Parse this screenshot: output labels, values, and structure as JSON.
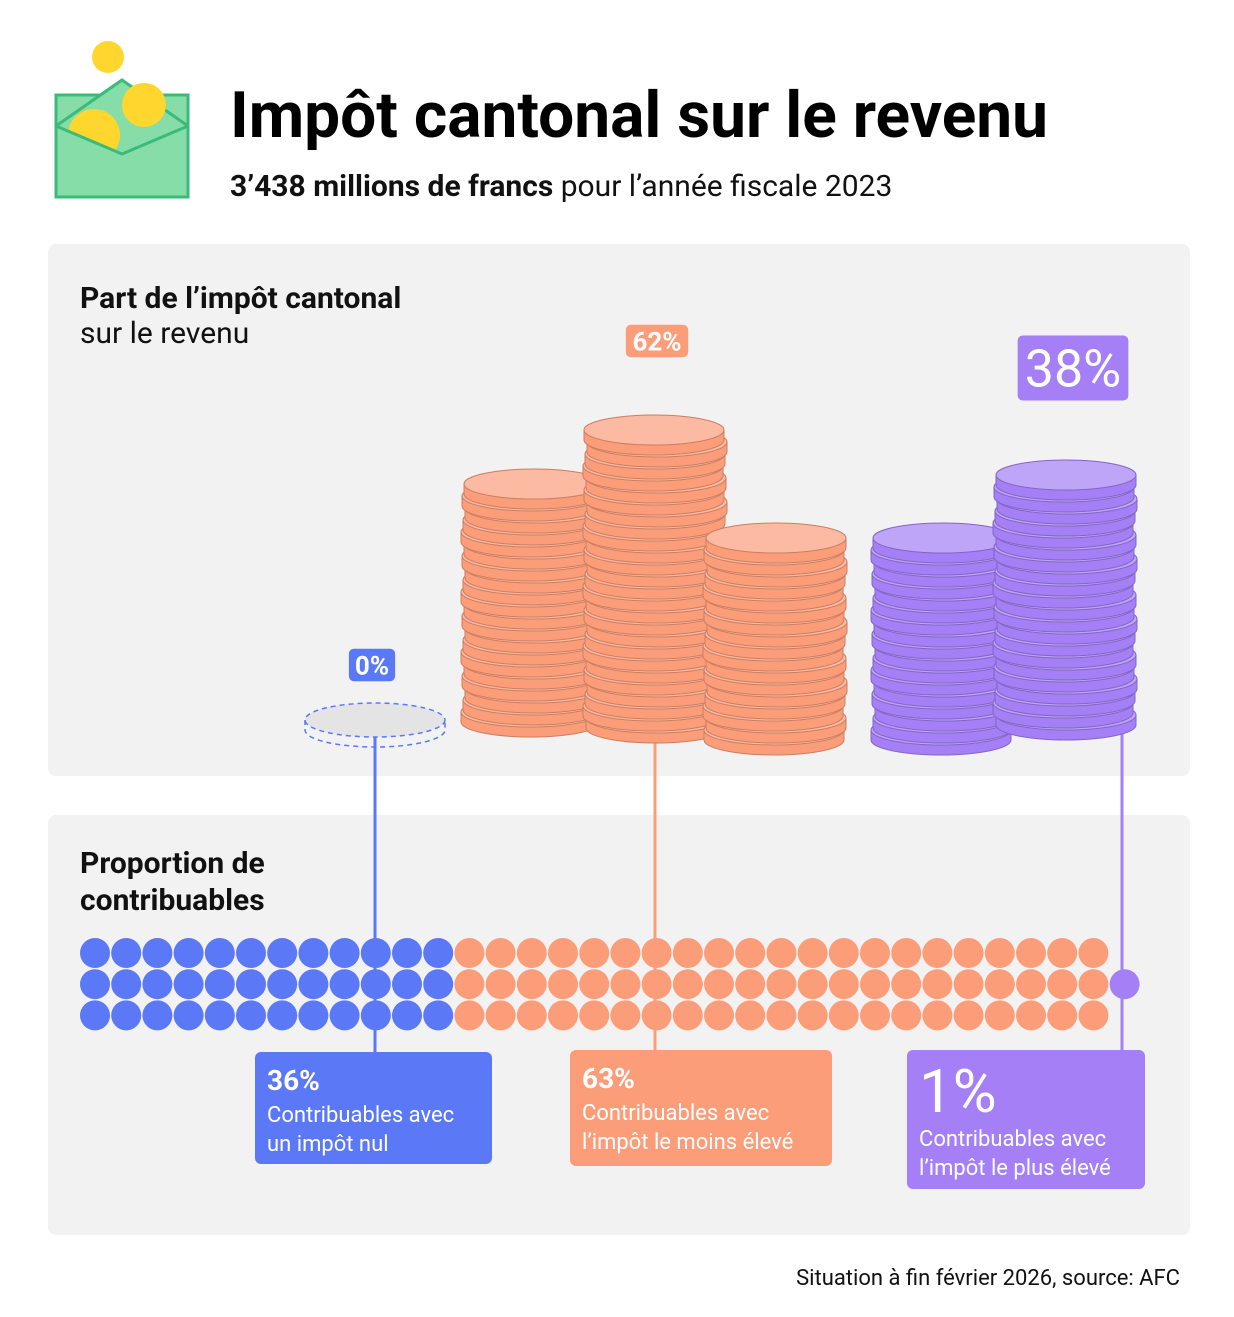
{
  "header": {
    "title": "Impôt cantonal sur le revenu",
    "subtitle_bold": "3’438 millions de francs",
    "subtitle_rest": "pour l’année fiscale 2023"
  },
  "chart_data": [
    {
      "type": "coins",
      "title": "Part de l’impôt cantonal",
      "subtitle": "sur le revenu",
      "values": [
        0,
        62,
        38
      ],
      "value_labels": [
        "0%",
        "62%",
        "38%"
      ],
      "colors": [
        "#5b78f7",
        "#fc9d7a",
        "#a47ff5"
      ]
    },
    {
      "type": "dots",
      "title": [
        "Proportion de",
        "contribuables"
      ],
      "values": [
        36,
        63,
        1
      ],
      "value_labels": [
        "36%",
        "63%",
        "1%"
      ],
      "descriptions": [
        [
          "Contribuables avec",
          "un impôt nul"
        ],
        [
          "Contribuables avec",
          "l’impôt le moins élevé"
        ],
        [
          "Contribuables avec",
          "l’impôt le plus élevé"
        ]
      ],
      "colors": [
        "#5b78f7",
        "#fc9d7a",
        "#a47ff5"
      ]
    }
  ],
  "footnote": "Situation à fin février 2026, source: AFC"
}
